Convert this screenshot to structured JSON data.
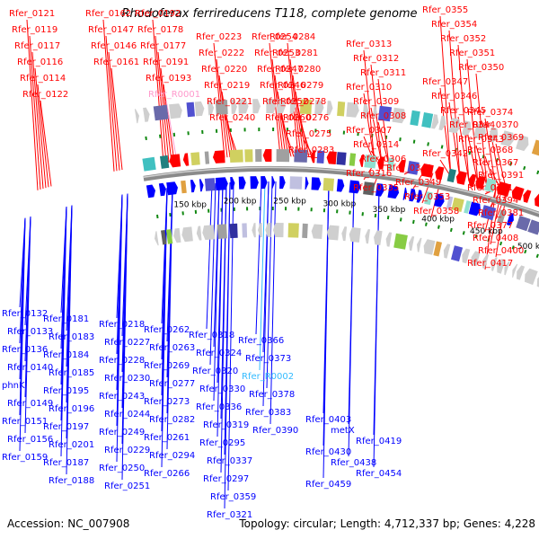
{
  "title": "Rhodoferax ferrireducens T118, complete genome",
  "footer": {
    "accession": "Accession: NC_007908",
    "summary": "Topology: circular; Length: 4,712,337 bp; Genes: 4,228"
  },
  "colors": {
    "forward_gene": "#ff0000",
    "reverse_gene": "#0000ff",
    "forward_rna": "#ff99cc",
    "reverse_rna": "#33bbff",
    "backbone": "#8a8a8a",
    "tick": "#118811"
  },
  "scale_labels": [
    "150 kbp",
    "200 kbp",
    "250 kbp",
    "300 kbp",
    "350 kbp",
    "400 kbp",
    "450 kbp",
    "500 kbp"
  ],
  "top_labels": [
    "Rfer_0121",
    "Rfer_0119",
    "Rfer_0117",
    "Rfer_0116",
    "Rfer_0114",
    "Rfer_0122",
    "Rfer_0162",
    "Rfer_0147",
    "Rfer_0146",
    "Rfer_0161",
    "Rfer_0192",
    "Rfer_0178",
    "Rfer_0177",
    "Rfer_0191",
    "Rfer_0193",
    "Rfer_R0001",
    "Rfer_0223",
    "Rfer_0222",
    "Rfer_0220",
    "Rfer_0219",
    "Rfer_0221",
    "Rfer_0240",
    "Rfer_0254",
    "Rfer_0253",
    "Rfer_0247",
    "Rfer_0246",
    "Rfer_0252",
    "Rfer_0260",
    "Rfer_0284",
    "Rfer_0281",
    "Rfer_0280",
    "Rfer_0279",
    "Rfer_0278",
    "Rfer_0276",
    "Rfer_0275",
    "Rfer_0283",
    "Rfer_0313",
    "Rfer_0312",
    "Rfer_0311",
    "Rfer_0310",
    "Rfer_0309",
    "Rfer_0308",
    "Rfer_0307",
    "Rfer_0314",
    "Rfer_0306",
    "Rfer_0316",
    "Rfer_0335",
    "Rfer_0355",
    "Rfer_0354",
    "Rfer_0352",
    "Rfer_0351",
    "Rfer_0350",
    "Rfer_0347",
    "Rfer_0346",
    "Rfer_0345",
    "Rfer_0344",
    "Rfer_0343",
    "Rfer_0342",
    "Rfer_0341",
    "Rfer_0349",
    "Rfer_0353",
    "Rfer_0358",
    "Rfer_0374",
    "Rfer_0370",
    "Rfer_0369",
    "Rfer_0368",
    "Rfer_0367",
    "Rfer_0391",
    "Rfer_0371",
    "Rfer_0394",
    "Rfer_0381",
    "Rfer_0377",
    "Rfer_0408",
    "Rfer_0400",
    "Rfer_0417"
  ],
  "bottom_labels": [
    "Rfer_0132",
    "Rfer_0133",
    "Rfer_0136",
    "Rfer_0140",
    "phnK",
    "Rfer_0149",
    "Rfer_0151",
    "Rfer_0156",
    "Rfer_0159",
    "Rfer_0181",
    "Rfer_0183",
    "Rfer_0184",
    "Rfer_0185",
    "Rfer_0195",
    "Rfer_0196",
    "Rfer_0197",
    "Rfer_0201",
    "Rfer_0187",
    "Rfer_0188",
    "Rfer_0218",
    "Rfer_0227",
    "Rfer_0228",
    "Rfer_0230",
    "Rfer_0243",
    "Rfer_0244",
    "Rfer_0249",
    "Rfer_0229",
    "Rfer_0250",
    "Rfer_0251",
    "Rfer_0262",
    "Rfer_0263",
    "Rfer_0269",
    "Rfer_0277",
    "Rfer_0273",
    "Rfer_0282",
    "Rfer_0261",
    "Rfer_0294",
    "Rfer_0266",
    "Rfer_0318",
    "Rfer_0324",
    "Rfer_0320",
    "Rfer_0330",
    "Rfer_0336",
    "Rfer_0319",
    "Rfer_0295",
    "Rfer_0337",
    "Rfer_0297",
    "Rfer_0359",
    "Rfer_0321",
    "Rfer_0366",
    "Rfer_0373",
    "Rfer_R0002",
    "Rfer_0378",
    "Rfer_0383",
    "Rfer_0390",
    "Rfer_0403",
    "metX",
    "Rfer_0419",
    "Rfer_0430",
    "Rfer_0438",
    "Rfer_0454",
    "Rfer_0459"
  ]
}
